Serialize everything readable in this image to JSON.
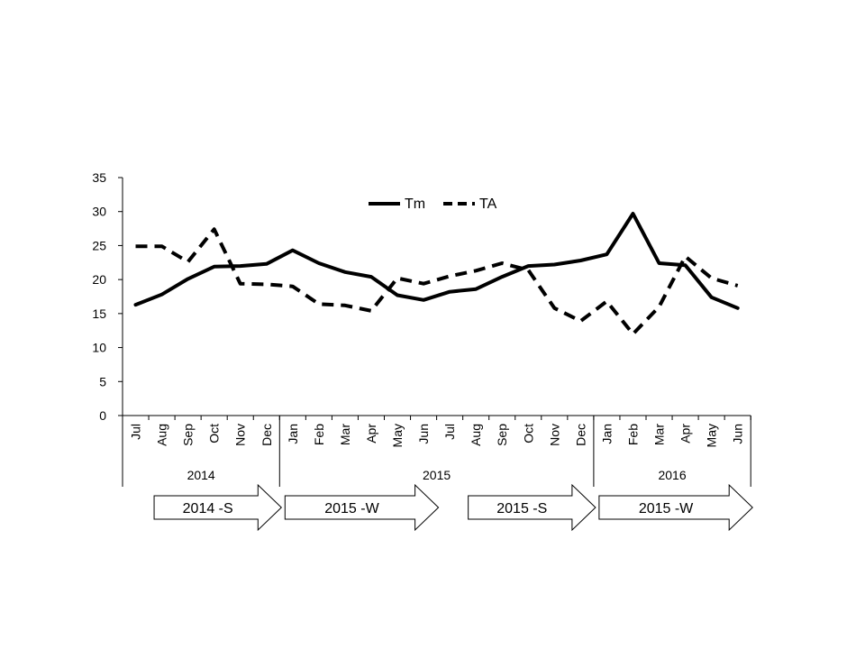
{
  "chart_data": {
    "type": "line",
    "title": "",
    "xlabel": "",
    "ylabel": "",
    "ylim": [
      0,
      35
    ],
    "yticks": [
      0,
      5,
      10,
      15,
      20,
      25,
      30,
      35
    ],
    "grid": false,
    "legend_position": "top-center",
    "categories": [
      "Jul",
      "Aug",
      "Sep",
      "Oct",
      "Nov",
      "Dec",
      "Jan",
      "Feb",
      "Mar",
      "Apr",
      "May",
      "Jun",
      "Jul",
      "Aug",
      "Sep",
      "Oct",
      "Nov",
      "Dec",
      "Jan",
      "Feb",
      "Mar",
      "Apr",
      "May",
      "Jun"
    ],
    "year_groups": [
      {
        "label": "2014",
        "start": 0,
        "end": 5
      },
      {
        "label": "2015",
        "start": 6,
        "end": 17
      },
      {
        "label": "2016",
        "start": 18,
        "end": 23
      }
    ],
    "seasons": [
      {
        "label": "2014 -S",
        "start": 1,
        "end": 5
      },
      {
        "label": "2015 -W",
        "start": 6,
        "end": 11
      },
      {
        "label": "2015 -S",
        "start": 13,
        "end": 17
      },
      {
        "label": "2015 -W",
        "start": 18,
        "end": 23
      }
    ],
    "series": [
      {
        "name": "Tm",
        "style": "solid",
        "color": "#000000",
        "values": [
          16.3,
          17.8,
          20.1,
          21.9,
          22.0,
          22.3,
          24.3,
          22.4,
          21.1,
          20.4,
          17.7,
          17.0,
          18.2,
          18.6,
          20.4,
          22.0,
          22.2,
          22.8,
          23.7,
          29.7,
          22.4,
          22.1,
          17.4,
          15.8
        ]
      },
      {
        "name": "TA",
        "style": "dashed",
        "color": "#000000",
        "values": [
          24.9,
          24.9,
          22.6,
          27.4,
          19.4,
          19.3,
          19.0,
          16.4,
          16.2,
          15.4,
          20.2,
          19.4,
          20.5,
          21.3,
          22.4,
          21.4,
          15.8,
          13.9,
          16.8,
          12.0,
          16.0,
          23.4,
          20.2,
          19.1
        ]
      }
    ]
  }
}
